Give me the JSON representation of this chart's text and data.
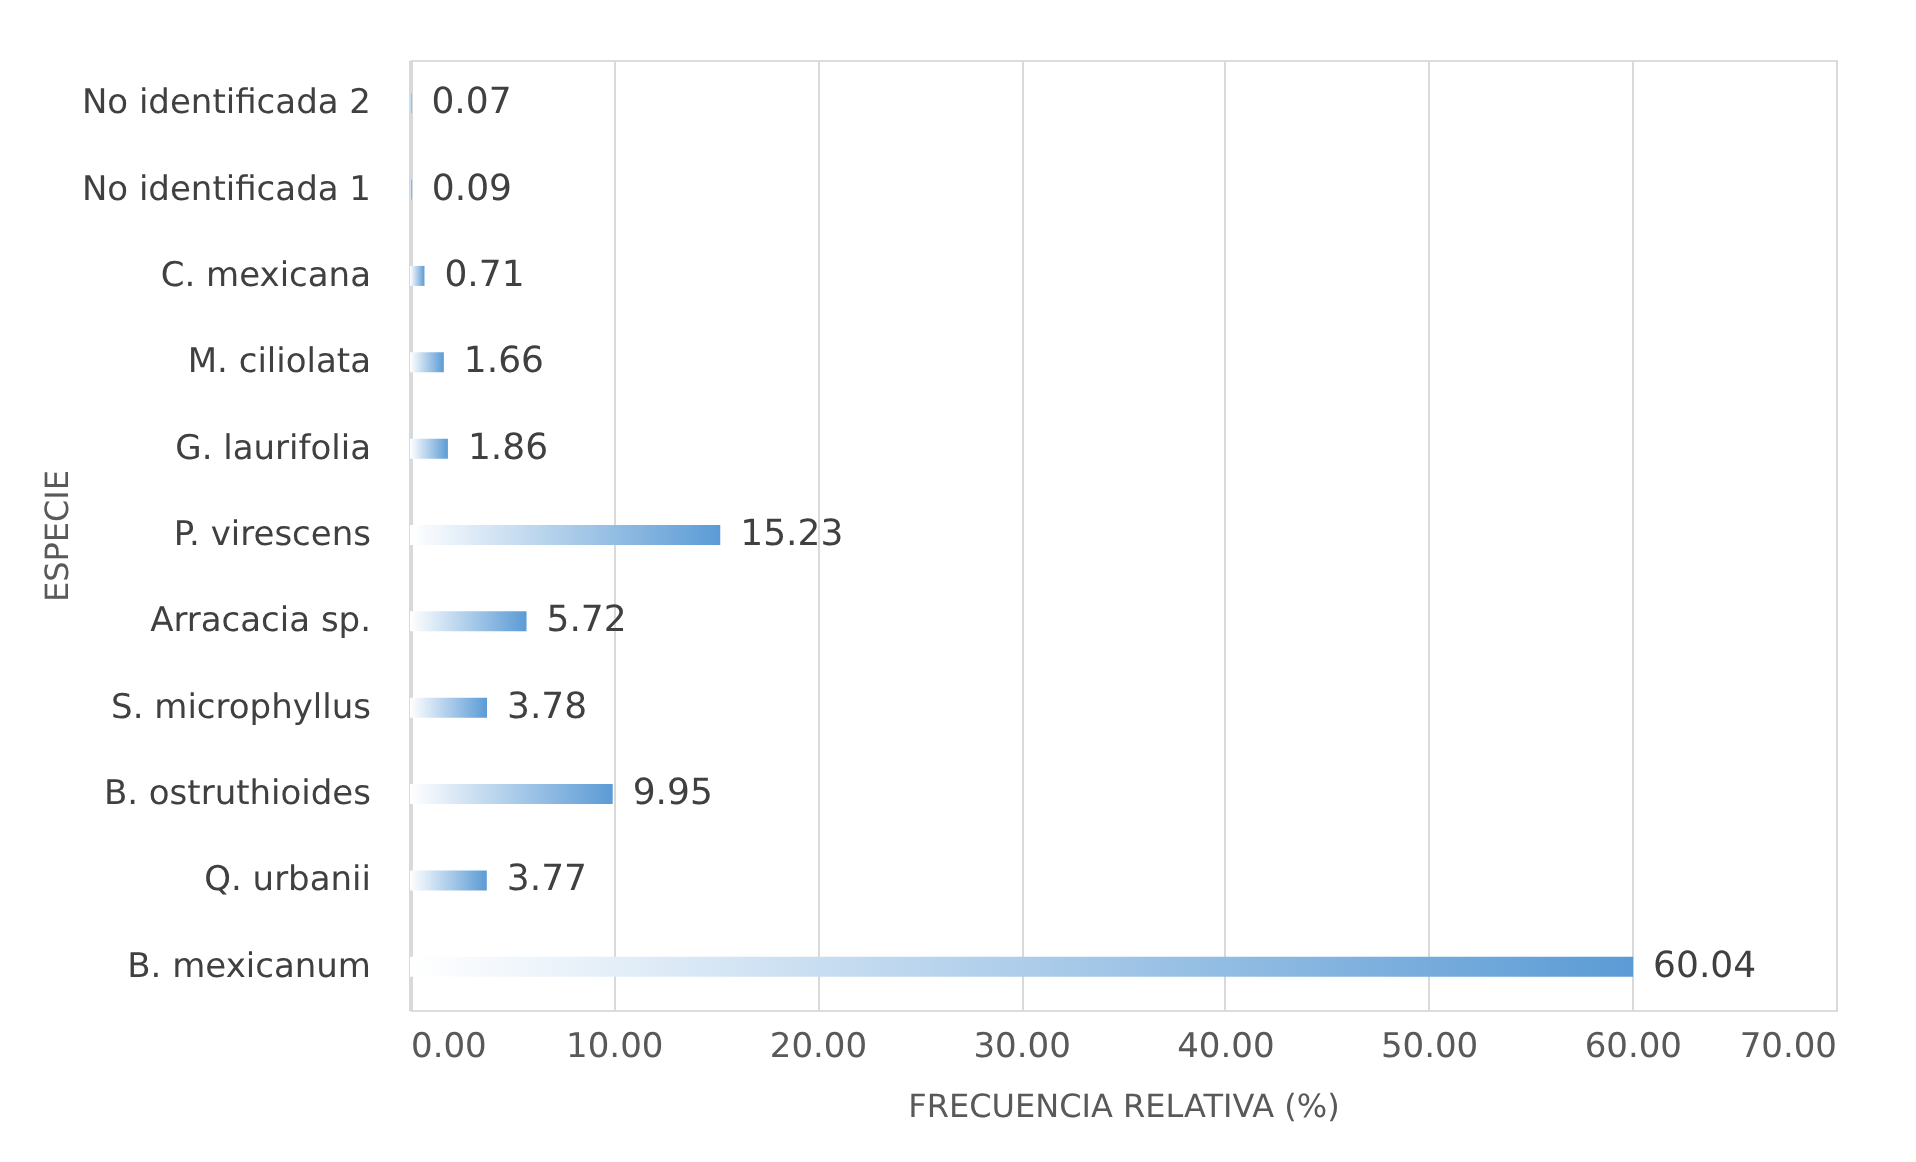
{
  "chart_data": {
    "type": "bar",
    "orientation": "horizontal",
    "xlabel": "FRECUENCIA RELATIVA (%)",
    "ylabel": "ESPECIE",
    "categories": [
      "No identificada 2",
      "No identificada 1",
      "C. mexicana",
      "M. ciliolata",
      "G. laurifolia",
      "P. virescens",
      "Arracacia sp.",
      "S. microphyllus",
      "B. ostruthioides",
      "Q. urbanii",
      "B. mexicanum"
    ],
    "values": [
      0.07,
      0.09,
      0.71,
      1.66,
      1.86,
      15.23,
      5.72,
      3.78,
      9.95,
      3.77,
      60.04
    ],
    "color": "#5b9bd5",
    "xlim": [
      0,
      70
    ],
    "xticks": [
      {
        "value": 0,
        "label": "0.00"
      },
      {
        "value": 10,
        "label": "10.00"
      },
      {
        "value": 20,
        "label": "20.00"
      },
      {
        "value": 30,
        "label": "30.00"
      },
      {
        "value": 40,
        "label": "40.00"
      },
      {
        "value": 50,
        "label": "50.00"
      },
      {
        "value": 60,
        "label": "60.00"
      },
      {
        "value": 70,
        "label": "70.00"
      }
    ],
    "grid": "x",
    "data_labels": true
  }
}
